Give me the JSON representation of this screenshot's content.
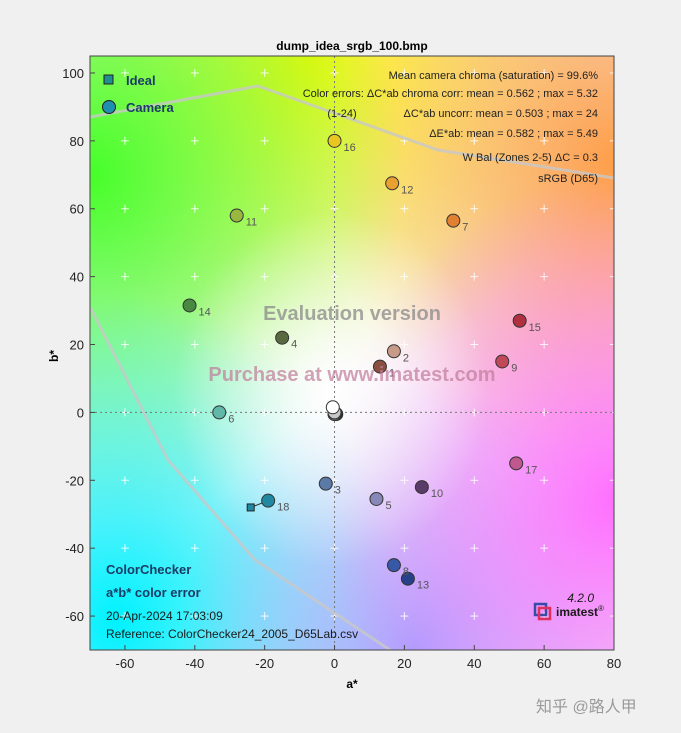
{
  "colors": {
    "frame_bg": "#f0f0f0",
    "grid_marks": "#ffffff",
    "camera_point_stroke": "#333333",
    "ideal_marker": "#2f8fa0"
  },
  "chart_data": {
    "type": "scatter",
    "title": "dump_idea_srgb_100.bmp",
    "xlabel": "a*",
    "ylabel": "b*",
    "xlim": [
      -70,
      80
    ],
    "ylim": [
      -70,
      105
    ],
    "xticks": [
      -60,
      -40,
      -20,
      0,
      20,
      40,
      60,
      80
    ],
    "yticks": [
      100,
      80,
      60,
      40,
      20,
      0,
      -20,
      -40,
      -60
    ],
    "legend": {
      "placement": "top-left",
      "entries": [
        {
          "label": "Ideal",
          "marker": "square",
          "color": "#1f8f8f"
        },
        {
          "label": "Camera",
          "marker": "circle",
          "color": "#1f8fb0"
        }
      ]
    },
    "annotations": [
      "Mean camera chroma (saturation) = 99.6%",
      "Color errors: ΔC*ab chroma corr:  mean = 0.562 ;  max = 5.32",
      "(1-24)",
      "ΔC*ab uncorr:  mean = 0.503 ;  max = 24",
      "ΔE*ab:  mean = 0.582 ;  max = 5.49",
      "W Bal (Zones 2-5) ΔC = 0.3",
      "sRGB (D65)"
    ],
    "watermarks": [
      "Evaluation version",
      "Purchase at www.imatest.com"
    ],
    "bottom_left": {
      "title": "ColorChecker",
      "subtitle": "a*b* color error",
      "date": "20-Apr-2024 17:03:09",
      "reference": "Reference: ColorChecker24_2005_D65Lab.csv"
    },
    "version": "4.2.0",
    "brand": "imatest",
    "camera_points": [
      {
        "id": "1",
        "a": 13,
        "b": 13.5,
        "color": "#8a5040"
      },
      {
        "id": "2",
        "a": 17,
        "b": 18,
        "color": "#c89a88"
      },
      {
        "id": "3",
        "a": -2.5,
        "b": -21,
        "color": "#5a7aa8"
      },
      {
        "id": "4",
        "a": -15,
        "b": 22,
        "color": "#5a6a40"
      },
      {
        "id": "5",
        "a": 12,
        "b": -25.5,
        "color": "#8888b8"
      },
      {
        "id": "6",
        "a": -33,
        "b": 0,
        "color": "#60b8a8"
      },
      {
        "id": "7",
        "a": 34,
        "b": 56.5,
        "color": "#e08030"
      },
      {
        "id": "8",
        "a": 17,
        "b": -45,
        "color": "#3858a8"
      },
      {
        "id": "9",
        "a": 48,
        "b": 15,
        "color": "#c04858"
      },
      {
        "id": "10",
        "a": 25,
        "b": -22,
        "color": "#5a3a68"
      },
      {
        "id": "11",
        "a": -28,
        "b": 58,
        "color": "#98b840"
      },
      {
        "id": "12",
        "a": 16.5,
        "b": 67.5,
        "color": "#e8a030"
      },
      {
        "id": "13",
        "a": 21,
        "b": -49,
        "color": "#284088"
      },
      {
        "id": "14",
        "a": -41.5,
        "b": 31.5,
        "color": "#488840"
      },
      {
        "id": "15",
        "a": 53,
        "b": 27,
        "color": "#b03040"
      },
      {
        "id": "16",
        "a": 0,
        "b": 80,
        "color": "#e8c820"
      },
      {
        "id": "17",
        "a": 52,
        "b": -15,
        "color": "#c05890"
      },
      {
        "id": "18",
        "a": -19,
        "b": -26,
        "color": "#2088a0"
      },
      {
        "id": "19",
        "a": -0.5,
        "b": 1.5,
        "color": "#ffffff"
      },
      {
        "id": "20",
        "a": 0,
        "b": 0,
        "color": "#c8c8c8"
      },
      {
        "id": "21",
        "a": 0,
        "b": 0,
        "color": "#a0a0a0"
      },
      {
        "id": "22",
        "a": 0,
        "b": -0.5,
        "color": "#787878"
      },
      {
        "id": "23",
        "a": 0,
        "b": -0.5,
        "color": "#505050"
      },
      {
        "id": "24",
        "a": 0.5,
        "b": -0.5,
        "color": "#303030"
      }
    ],
    "point_labels": [
      "1",
      "2",
      "3",
      "4",
      "5",
      "6",
      "7",
      "8",
      "9",
      "10",
      "11",
      "12",
      "13",
      "14",
      "15",
      "16",
      "17",
      "18"
    ],
    "ideal_points": [
      {
        "id": "18",
        "a": -24,
        "b": -28
      }
    ]
  },
  "corner_text": "知乎 @路人甲"
}
